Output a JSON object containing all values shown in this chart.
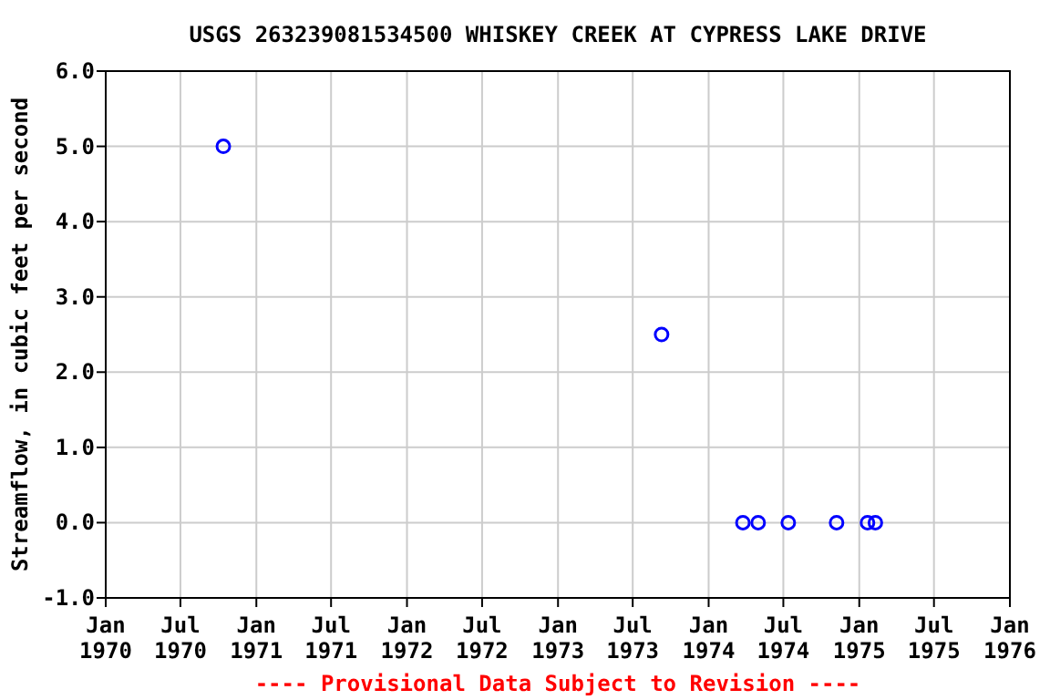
{
  "chart_data": {
    "type": "scatter",
    "title": "USGS 263239081534500 WHISKEY CREEK AT CYPRESS LAKE DRIVE",
    "ylabel": "Streamflow, in cubic feet per second",
    "x": [
      "1970-10-13",
      "1973-09-09",
      "1974-03-25",
      "1974-05-01",
      "1974-07-13",
      "1974-11-07",
      "1975-01-21",
      "1975-02-09"
    ],
    "series": [
      {
        "color": "#0000ff",
        "values": [
          5.0,
          2.5,
          0,
          0,
          0,
          0,
          0,
          0
        ]
      }
    ],
    "xlim": [
      "1970-01-01",
      "1976-01-01"
    ],
    "xticks": [
      {
        "value": "1970-01",
        "label": "Jan\n1970"
      },
      {
        "value": "1970-07",
        "label": "Jul\n1970"
      },
      {
        "value": "1971-01",
        "label": "Jan\n1971"
      },
      {
        "value": "1971-07",
        "label": "Jul\n1971"
      },
      {
        "value": "1972-01",
        "label": "Jan\n1972"
      },
      {
        "value": "1972-07",
        "label": "Jul\n1972"
      },
      {
        "value": "1973-01",
        "label": "Jan\n1973"
      },
      {
        "value": "1973-07",
        "label": "Jul\n1973"
      },
      {
        "value": "1974-01",
        "label": "Jan\n1974"
      },
      {
        "value": "1974-07",
        "label": "Jul\n1974"
      },
      {
        "value": "1975-01",
        "label": "Jan\n1975"
      },
      {
        "value": "1975-07",
        "label": "Jul\n1975"
      },
      {
        "value": "1976-01",
        "label": "Jan\n1976"
      }
    ],
    "ylim": [
      -1,
      6
    ],
    "yticks": [
      {
        "value": -1,
        "label": "-1.0"
      },
      {
        "value": 0,
        "label": "0.0"
      },
      {
        "value": 1,
        "label": "1.0"
      },
      {
        "value": 2,
        "label": "2.0"
      },
      {
        "value": 3,
        "label": "3.0"
      },
      {
        "value": 4,
        "label": "4.0"
      },
      {
        "value": 5,
        "label": "5.0"
      },
      {
        "value": 6,
        "label": "6.0"
      }
    ],
    "grid": true,
    "marker": "circle",
    "annotations": [
      "---- Provisional Data Subject to Revision ----"
    ]
  }
}
